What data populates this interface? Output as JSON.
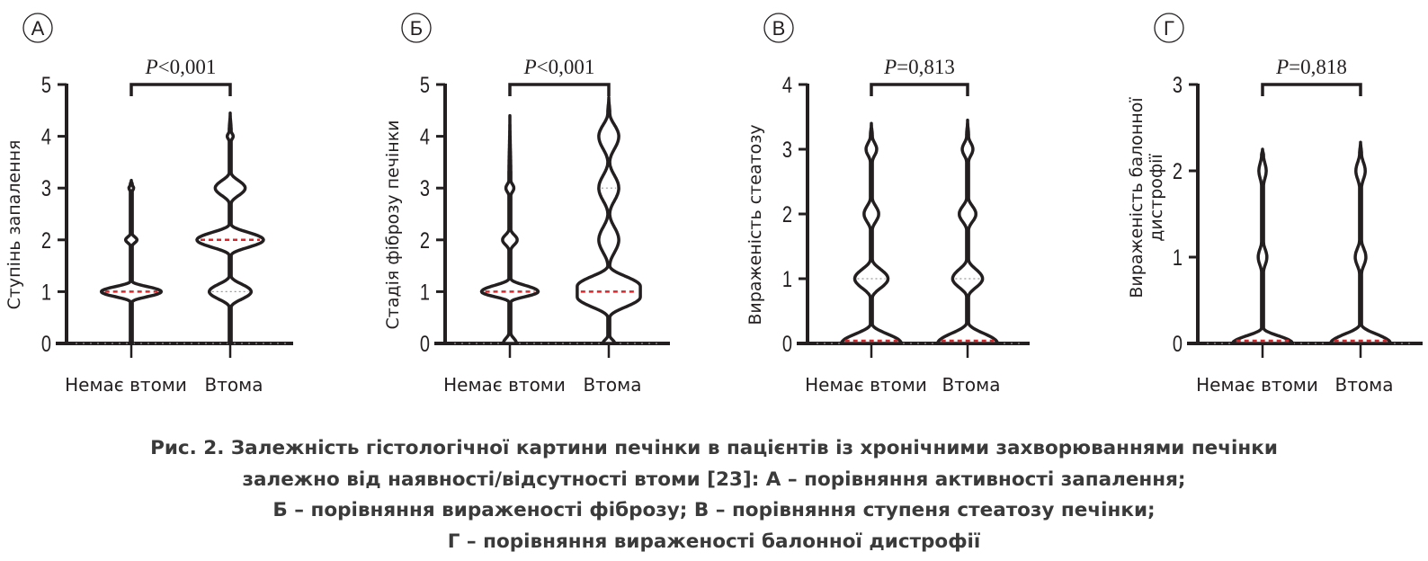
{
  "chart_data": [
    {
      "type": "violin",
      "panel_label": "А",
      "ylabel": "Ступінь запалення",
      "categories": [
        "Немає втоми",
        "Втома"
      ],
      "ylim": [
        0,
        5
      ],
      "yticks": [
        "0",
        "1",
        "2",
        "3",
        "4",
        "5"
      ],
      "p_value": "<0,001",
      "series": [
        {
          "category": "Немає втоми",
          "median": 1,
          "quartiles": [
            1,
            1
          ],
          "max": 3.15,
          "density": [
            [
              0,
              0.03
            ],
            [
              0.8,
              0.03
            ],
            [
              1,
              0.9
            ],
            [
              1.2,
              0.03
            ],
            [
              1.88,
              0.03
            ],
            [
              2,
              0.17
            ],
            [
              2.12,
              0.03
            ],
            [
              2.93,
              0.03
            ],
            [
              3,
              0.07
            ],
            [
              3.07,
              0.03
            ],
            [
              3.15,
              0
            ]
          ]
        },
        {
          "category": "Втома",
          "median": 2,
          "quartiles": [
            1,
            2
          ],
          "max": 4.45,
          "density": [
            [
              0,
              0.03
            ],
            [
              0.7,
              0.03
            ],
            [
              1,
              0.63
            ],
            [
              1.3,
              0.03
            ],
            [
              1.7,
              0.03
            ],
            [
              2,
              1
            ],
            [
              2.3,
              0.03
            ],
            [
              2.7,
              0.03
            ],
            [
              3,
              0.45
            ],
            [
              3.3,
              0.03
            ],
            [
              3.9,
              0.03
            ],
            [
              4,
              0.09
            ],
            [
              4.1,
              0.03
            ],
            [
              4.45,
              0
            ]
          ]
        }
      ]
    },
    {
      "type": "violin",
      "panel_label": "Б",
      "ylabel": "Стадія фіброзу печінки",
      "categories": [
        "Немає втоми",
        "Втома"
      ],
      "ylim": [
        0,
        5
      ],
      "yticks": [
        "0",
        "1",
        "2",
        "3",
        "4",
        "5"
      ],
      "p_value": "<0,001",
      "series": [
        {
          "category": "Немає втоми",
          "median": 1,
          "quartiles": [
            1,
            1
          ],
          "max": 4.4,
          "density": [
            [
              0,
              0.2
            ],
            [
              0.2,
              0.03
            ],
            [
              0.8,
              0.03
            ],
            [
              1,
              0.85
            ],
            [
              1.25,
              0.03
            ],
            [
              1.8,
              0.03
            ],
            [
              2,
              0.22
            ],
            [
              2.2,
              0.03
            ],
            [
              2.85,
              0.03
            ],
            [
              3,
              0.12
            ],
            [
              3.15,
              0.03
            ],
            [
              4.4,
              0
            ]
          ]
        },
        {
          "category": "Втома",
          "median": 1,
          "quartiles": [
            1,
            3
          ],
          "max": 4.75,
          "density": [
            [
              0,
              0.18
            ],
            [
              0.15,
              0.03
            ],
            [
              0.5,
              0.03
            ],
            [
              0.9,
              0.95
            ],
            [
              1.1,
              0.95
            ],
            [
              1.5,
              0.03
            ],
            [
              2,
              0.3
            ],
            [
              2.5,
              0.03
            ],
            [
              3,
              0.3
            ],
            [
              3.5,
              0.03
            ],
            [
              4,
              0.3
            ],
            [
              4.45,
              0.03
            ],
            [
              4.75,
              0
            ]
          ]
        }
      ]
    },
    {
      "type": "violin",
      "panel_label": "В",
      "ylabel": "Вираженість стеатозу",
      "categories": [
        "Немає втоми",
        "Втома"
      ],
      "ylim": [
        0,
        4
      ],
      "yticks": [
        "0",
        "1",
        "2",
        "3",
        "4"
      ],
      "p_value": "=0,813",
      "series": [
        {
          "category": "Немає втоми",
          "median": 0,
          "quartiles": [
            0,
            1
          ],
          "max": 3.4,
          "density": [
            [
              0,
              0.9
            ],
            [
              0.3,
              0.03
            ],
            [
              0.7,
              0.03
            ],
            [
              1,
              0.5
            ],
            [
              1.3,
              0.03
            ],
            [
              1.75,
              0.03
            ],
            [
              2,
              0.22
            ],
            [
              2.25,
              0.03
            ],
            [
              2.8,
              0.03
            ],
            [
              3,
              0.16
            ],
            [
              3.2,
              0.03
            ],
            [
              3.4,
              0
            ]
          ]
        },
        {
          "category": "Втома",
          "median": 0,
          "quartiles": [
            0,
            1
          ],
          "max": 3.45,
          "density": [
            [
              0,
              0.9
            ],
            [
              0.32,
              0.03
            ],
            [
              0.72,
              0.03
            ],
            [
              1,
              0.45
            ],
            [
              1.3,
              0.03
            ],
            [
              1.75,
              0.03
            ],
            [
              2,
              0.25
            ],
            [
              2.25,
              0.03
            ],
            [
              2.8,
              0.03
            ],
            [
              3,
              0.16
            ],
            [
              3.2,
              0.03
            ],
            [
              3.45,
              0
            ]
          ]
        }
      ]
    },
    {
      "type": "violin",
      "panel_label": "Г",
      "ylabel": "Вираженість балонної дистрофії",
      "ylabel_lines": [
        "Вираженість балонної",
        "дистрофії"
      ],
      "categories": [
        "Немає втоми",
        "Втома"
      ],
      "ylim": [
        0,
        3
      ],
      "yticks": [
        "0",
        "1",
        "2",
        "3"
      ],
      "p_value": "=0,818",
      "series": [
        {
          "category": "Немає втоми",
          "median": 0,
          "quartiles": [
            0,
            0
          ],
          "max": 2.25,
          "density": [
            [
              0,
              0.9
            ],
            [
              0.18,
              0.03
            ],
            [
              0.82,
              0.03
            ],
            [
              1,
              0.13
            ],
            [
              1.18,
              0.03
            ],
            [
              1.82,
              0.03
            ],
            [
              2,
              0.11
            ],
            [
              2.18,
              0.03
            ],
            [
              2.25,
              0
            ]
          ]
        },
        {
          "category": "Втома",
          "median": 0,
          "quartiles": [
            0,
            0
          ],
          "max": 2.33,
          "density": [
            [
              0,
              0.9
            ],
            [
              0.22,
              0.03
            ],
            [
              0.8,
              0.03
            ],
            [
              1,
              0.16
            ],
            [
              1.2,
              0.03
            ],
            [
              1.8,
              0.03
            ],
            [
              2,
              0.14
            ],
            [
              2.2,
              0.03
            ],
            [
              2.33,
              0
            ]
          ]
        }
      ]
    }
  ],
  "p_prefix": "P",
  "colors": {
    "violin": "#231f20",
    "median": "#d9262b",
    "quartile": "#9a9a9a",
    "caption": "#3a3a3a"
  },
  "caption": {
    "lines": [
      "Рис. 2. Залежність гістологічної картини печінки в пацієнтів із хронічними захворюваннями печінки",
      "залежно від наявності/відсутності втоми [23]: А – порівняння активності запалення;",
      "Б – порівняння вираженості фіброзу; В – порівняння ступеня стеатозу печінки;",
      "Г – порівняння вираженості балонної дистрофії"
    ]
  }
}
